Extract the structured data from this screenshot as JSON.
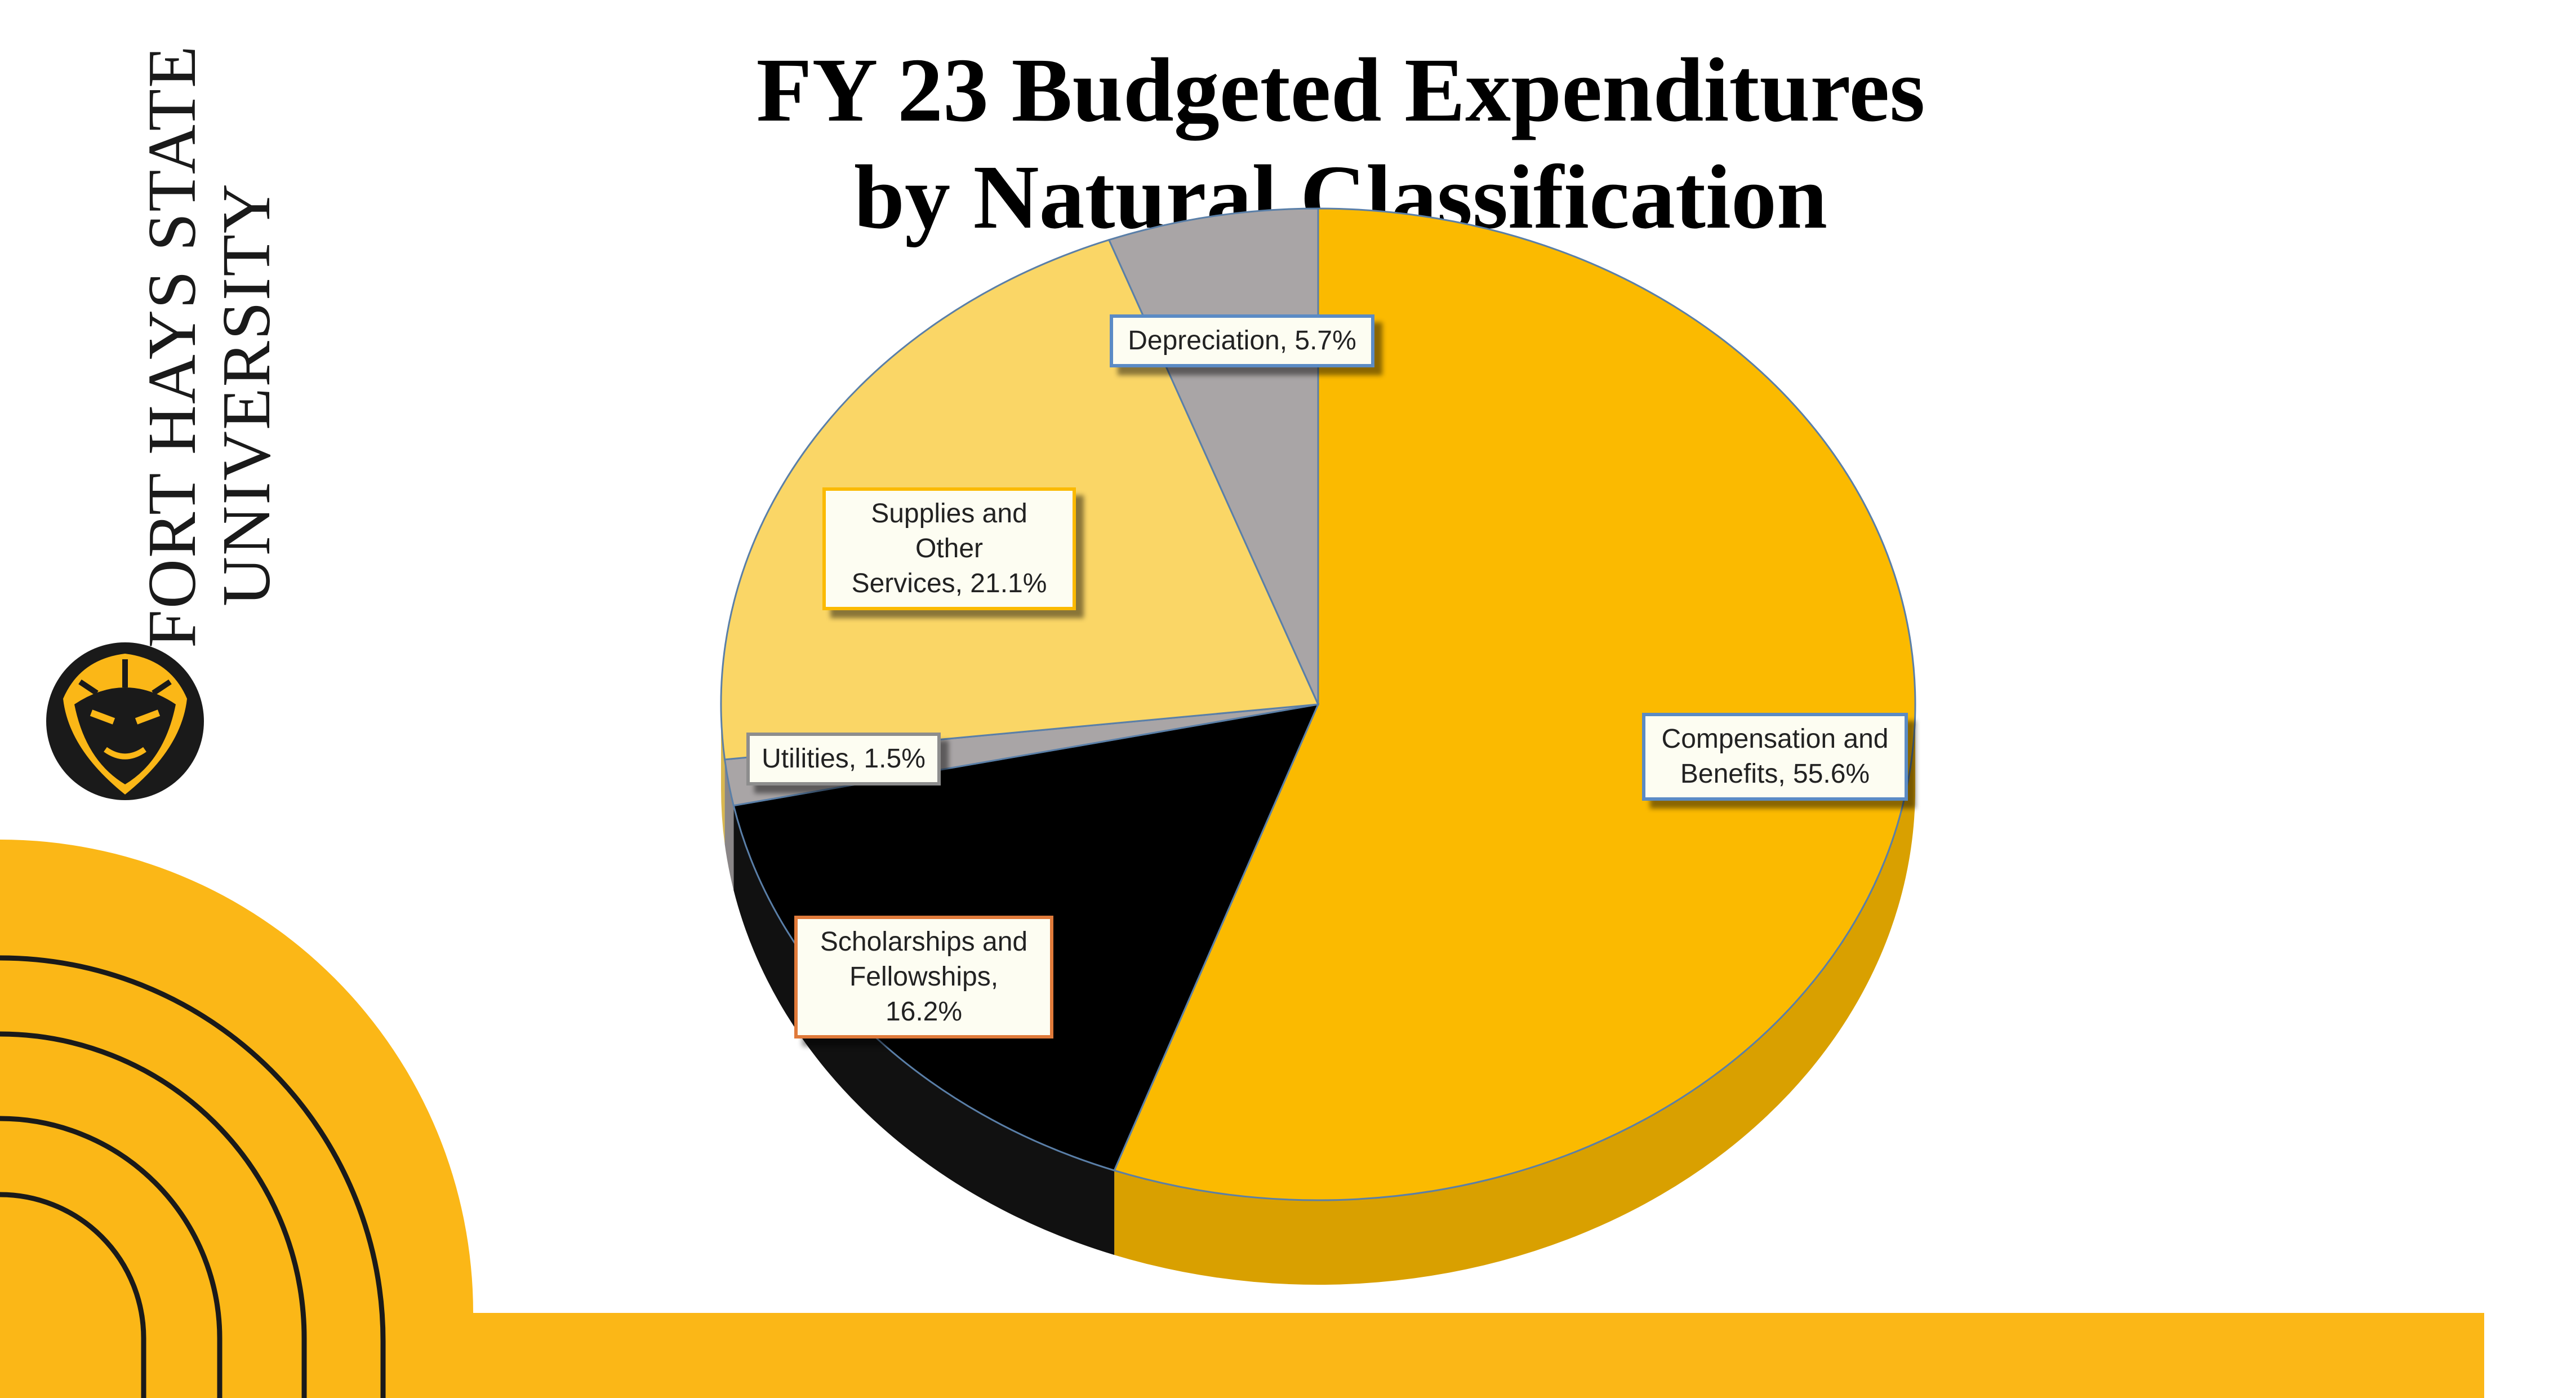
{
  "slide": {
    "title_line1": "FY 23 Budgeted Expenditures",
    "title_line2": "by Natural Classification"
  },
  "logo": {
    "line1": "FORT HAYS STATE",
    "line2": "UNIVERSITY",
    "icon": "tiger-head-icon"
  },
  "colors": {
    "gold": "#FBBA00",
    "black": "#000000",
    "light_gold": "#FAD666",
    "gray": "#A9A5A6",
    "slide_accent": "#FBB717"
  },
  "chart_data": {
    "type": "pie",
    "title": "FY 23 Budgeted Expenditures by Natural Classification",
    "slices": [
      {
        "name": "Compensation and Benefits",
        "value": 55.6,
        "label_line1": "Compensation and",
        "label_line2": "Benefits, 55.6%",
        "color": "#FBBA00"
      },
      {
        "name": "Scholarships and Fellowships",
        "value": 16.2,
        "label_line1": "Scholarships and",
        "label_line2": "Fellowships, 16.2%",
        "color": "#000000"
      },
      {
        "name": "Utilities",
        "value": 1.5,
        "label_line1": "Utilities, 1.5%",
        "label_line2": "",
        "color": "#A9A5A6"
      },
      {
        "name": "Supplies and Other Services",
        "value": 21.1,
        "label_line1": "Supplies and Other",
        "label_line2": "Services, 21.1%",
        "color": "#FAD666"
      },
      {
        "name": "Depreciation",
        "value": 5.7,
        "label_line1": "Depreciation, 5.7%",
        "label_line2": "",
        "color": "#A9A5A6"
      }
    ],
    "legend": "none",
    "style": "3d-tilted"
  }
}
